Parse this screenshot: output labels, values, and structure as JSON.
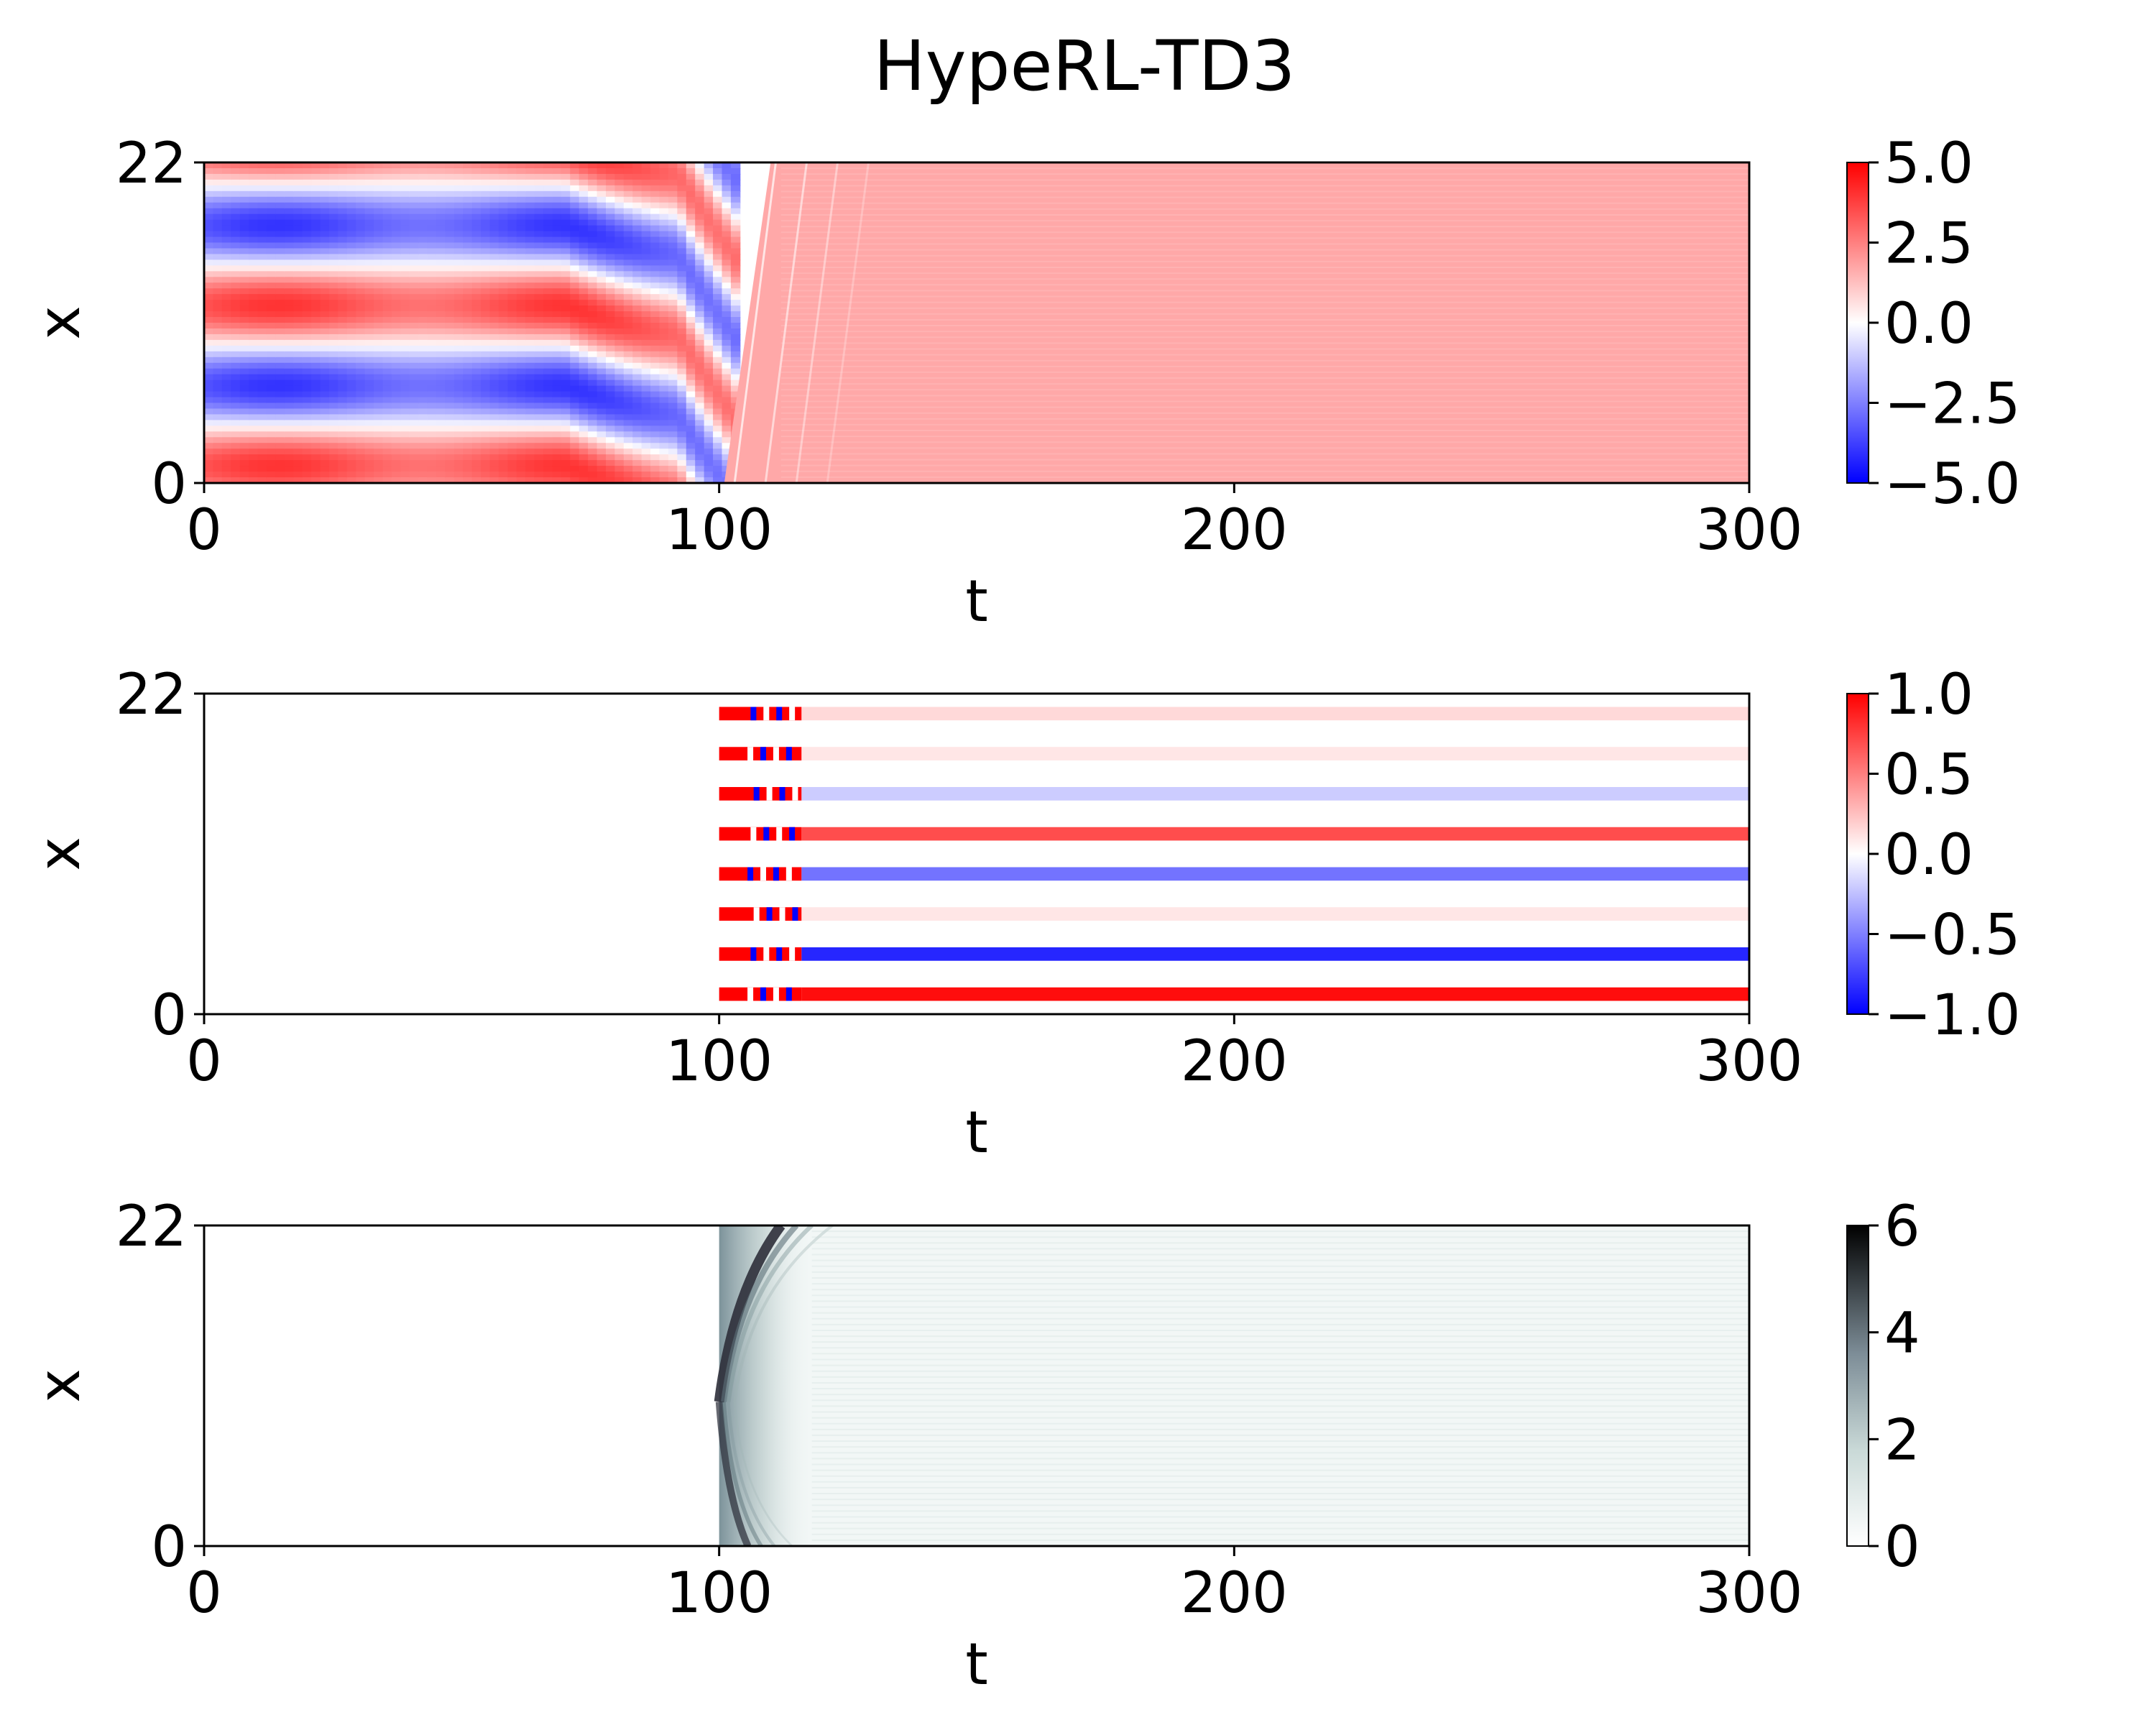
{
  "figure_title": "HypeRL-TD3",
  "chart_data": [
    {
      "type": "heatmap",
      "title": "",
      "xlabel": "t",
      "ylabel": "x",
      "xlim": [
        0,
        300
      ],
      "ylim": [
        0,
        22
      ],
      "xticks": [
        "0",
        "100",
        "200",
        "300"
      ],
      "yticks": [
        "0",
        "22"
      ],
      "colormap": "bwr",
      "colorbar": {
        "min": -5.0,
        "max": 5.0,
        "ticks": [
          "5.0",
          "2.5",
          "0.0",
          "−2.5",
          "−5.0"
        ]
      },
      "description_values": {
        "uncontrolled_until_t": 100,
        "steady_state_value": 1.7
      }
    },
    {
      "type": "heatmap",
      "title": "",
      "xlabel": "t",
      "ylabel": "x",
      "xlim": [
        0,
        300
      ],
      "ylim": [
        0,
        22
      ],
      "xticks": [
        "0",
        "100",
        "200",
        "300"
      ],
      "yticks": [
        "0",
        "22"
      ],
      "colormap": "bwr",
      "colorbar": {
        "min": -1.0,
        "max": 1.0,
        "ticks": [
          "1.0",
          "0.5",
          "0.0",
          "−0.5",
          "−1.0"
        ]
      },
      "actuator_x": [
        1.375,
        4.125,
        6.875,
        9.625,
        12.375,
        15.125,
        17.875,
        20.625
      ],
      "steady_actuation": [
        0.95,
        -0.85,
        0.1,
        -0.55,
        0.7,
        -0.2,
        0.1,
        0.15
      ]
    },
    {
      "type": "heatmap",
      "title": "",
      "xlabel": "t",
      "ylabel": "x",
      "xlim": [
        0,
        300
      ],
      "ylim": [
        0,
        22
      ],
      "xticks": [
        "0",
        "100",
        "200",
        "300"
      ],
      "yticks": [
        "0",
        "22"
      ],
      "colormap": "bone_r",
      "colorbar": {
        "min": 0,
        "max": 6,
        "ticks": [
          "6",
          "4",
          "2",
          "0"
        ]
      }
    }
  ],
  "colors": {
    "red": "#ff0000",
    "blue": "#0000ff",
    "white": "#ffffff",
    "dark": "#111111",
    "teal_light": "#e8f0ef"
  }
}
